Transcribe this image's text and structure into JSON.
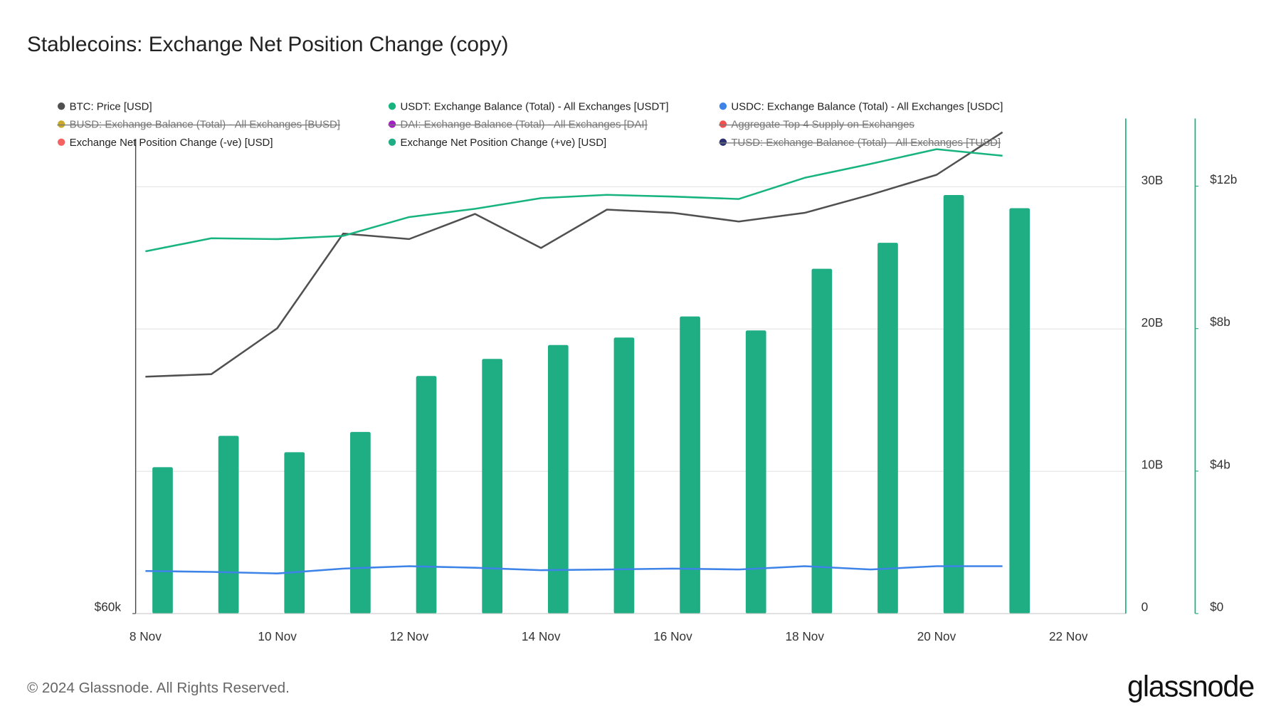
{
  "chart_data": {
    "type": "combo",
    "title": "Stablecoins: Exchange Net Position Change (copy)",
    "footer": "© 2024 Glassnode. All Rights Reserved.",
    "logo": "glassnode",
    "categories": [
      "8 Nov",
      null,
      "10 Nov",
      null,
      "12 Nov",
      null,
      "14 Nov",
      null,
      "16 Nov",
      null,
      "18 Nov",
      null,
      "20 Nov",
      null,
      "22 Nov"
    ],
    "yscale": "log",
    "ylim": [
      60,
      99.7
    ],
    "yticks": [
      {
        "value": 60,
        "label": "$60k"
      }
    ],
    "y2lim": [
      0,
      34.8
    ],
    "y2ticks": [
      {
        "value": 0,
        "label": "0"
      },
      {
        "value": 10,
        "label": "10B"
      },
      {
        "value": 20,
        "label": "20B"
      },
      {
        "value": 30,
        "label": "30B"
      }
    ],
    "y3lim": [
      0,
      13.9
    ],
    "y3ticks": [
      {
        "value": 0,
        "label": "$0"
      },
      {
        "value": 4,
        "label": "$4b"
      },
      {
        "value": 8,
        "label": "$8b"
      },
      {
        "value": 12,
        "label": "$12b"
      }
    ],
    "grid": true,
    "series": [
      {
        "name": "BTC: Price [USD]",
        "color": "#505050",
        "kind": "line",
        "axis": "y",
        "values": [
          76.5,
          76.7,
          80.4,
          88.6,
          88.1,
          90.4,
          87.3,
          90.8,
          90.5,
          89.7,
          90.5,
          92.2,
          94.1,
          98.3,
          null
        ]
      },
      {
        "name": "USDT: Exchange Balance (Total) - All Exchanges [USDT]",
        "color": "#18b47f",
        "kind": "line",
        "axis": "y2",
        "values": [
          25.46,
          26.38,
          26.32,
          26.55,
          27.87,
          28.45,
          29.2,
          29.43,
          29.31,
          29.14,
          30.63,
          31.61,
          32.64,
          32.18,
          null
        ]
      },
      {
        "name": "USDC: Exchange Balance (Total) - All Exchanges [USDC]",
        "color": "#3e83e8",
        "kind": "line",
        "axis": "y2",
        "values": [
          2.99,
          2.93,
          2.82,
          3.16,
          3.33,
          3.22,
          3.05,
          3.1,
          3.16,
          3.1,
          3.33,
          3.1,
          3.33,
          3.33,
          null
        ]
      },
      {
        "name": "BUSD: Exchange Balance (Total) - All Exchanges [BUSD]",
        "color": "#c9a92b",
        "hidden": true
      },
      {
        "name": "DAI: Exchange Balance (Total) - All Exchanges [DAI]",
        "color": "#a020c0",
        "hidden": true
      },
      {
        "name": "Aggregate Top 4 Supply on Exchanges",
        "color": "#f05050",
        "hidden": true
      },
      {
        "name": "Exchange Net Position Change (-ve) [USD]",
        "color": "#f56262"
      },
      {
        "name": "Exchange Net Position Change (+ve) [USD]",
        "color": "#1fae83",
        "kind": "bar",
        "axis": "y3",
        "values": [
          4.11,
          4.99,
          4.53,
          5.1,
          6.67,
          7.15,
          7.54,
          7.75,
          8.34,
          7.95,
          9.68,
          10.41,
          11.75,
          11.38,
          null
        ]
      },
      {
        "name": "TUSD: Exchange Balance (Total) - All Exchanges [TUSD]",
        "color": "#2b3070",
        "hidden": true
      }
    ]
  }
}
